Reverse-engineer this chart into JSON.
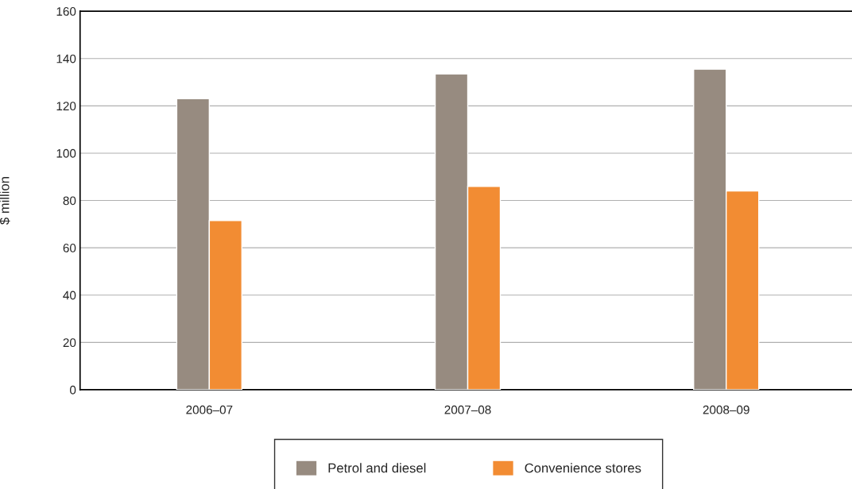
{
  "chart_data": {
    "type": "bar",
    "ylabel": "$ million",
    "categories": [
      "2006–07",
      "2007–08",
      "2008–09"
    ],
    "series": [
      {
        "name": "Petrol and diesel",
        "color": "#978b80",
        "values": [
          123,
          133.5,
          135.5
        ]
      },
      {
        "name": "Convenience stores",
        "color": "#f28c33",
        "values": [
          71.5,
          86,
          84
        ]
      }
    ],
    "ylim": [
      0,
      160
    ],
    "yticks": [
      0,
      20,
      40,
      60,
      80,
      100,
      120,
      140,
      160
    ],
    "grid": "y",
    "legend": "bottom"
  }
}
